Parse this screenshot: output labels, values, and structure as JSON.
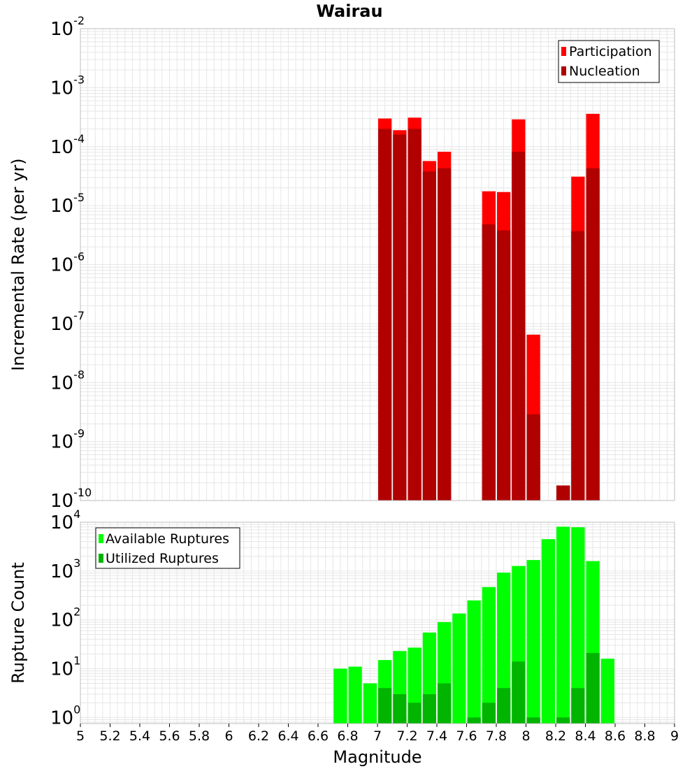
{
  "title": "Wairau",
  "colors": {
    "participation": "#ff0000",
    "nucleation": "#b00000",
    "available": "#00ff00",
    "utilized": "#00b400",
    "grid": "#e6e6e6",
    "frame": "#bdbdbd"
  },
  "chart_data": [
    {
      "type": "bar",
      "log_scale_y": true,
      "grid": true,
      "ylabel": "Incremental Rate (per yr)",
      "xlabel": "",
      "xlim": [
        5,
        9
      ],
      "ylim": [
        1e-10,
        0.01
      ],
      "bar_width": 0.1,
      "legend_position": "top-right",
      "y_ticks": [
        {
          "base": "10",
          "exp": "-10",
          "value": 1e-10
        },
        {
          "base": "10",
          "exp": "-9",
          "value": 1e-09
        },
        {
          "base": "10",
          "exp": "-8",
          "value": 1e-08
        },
        {
          "base": "10",
          "exp": "-7",
          "value": 1e-07
        },
        {
          "base": "10",
          "exp": "-6",
          "value": 1e-06
        },
        {
          "base": "10",
          "exp": "-5",
          "value": 1e-05
        },
        {
          "base": "10",
          "exp": "-4",
          "value": 0.0001
        },
        {
          "base": "10",
          "exp": "-3",
          "value": 0.001
        },
        {
          "base": "10",
          "exp": "-2",
          "value": 0.01
        }
      ],
      "series": [
        {
          "name": "Participation",
          "x": [
            7.05,
            7.15,
            7.25,
            7.35,
            7.45,
            7.75,
            7.85,
            7.95,
            8.05,
            8.25,
            8.35,
            8.45
          ],
          "values": [
            0.0003,
            0.00019,
            0.00031,
            5.7e-05,
            8.2e-05,
            1.75e-05,
            1.7e-05,
            0.00029,
            6.5e-08,
            1.8e-10,
            3.1e-05,
            0.00036
          ]
        },
        {
          "name": "Nucleation",
          "x": [
            7.05,
            7.15,
            7.25,
            7.35,
            7.45,
            7.75,
            7.85,
            7.95,
            8.05,
            8.25,
            8.35,
            8.45
          ],
          "values": [
            0.0002,
            0.00016,
            0.0002,
            3.8e-05,
            4.3e-05,
            4.8e-06,
            3.8e-06,
            8.2e-05,
            2.9e-09,
            1.8e-10,
            3.7e-06,
            4.3e-05
          ]
        }
      ]
    },
    {
      "type": "bar",
      "log_scale_y": true,
      "grid": true,
      "ylabel": "Rupture Count",
      "xlabel": "Magnitude",
      "xlim": [
        5,
        9
      ],
      "ylim": [
        0.75,
        10000
      ],
      "bar_width": 0.1,
      "legend_position": "top-left",
      "x_tick_labels": [
        "5",
        "5.2",
        "5.4",
        "5.6",
        "5.8",
        "6",
        "6.2",
        "6.4",
        "6.6",
        "6.8",
        "7",
        "7.2",
        "7.4",
        "7.6",
        "7.8",
        "8",
        "8.2",
        "8.4",
        "8.6",
        "8.8",
        "9"
      ],
      "y_ticks": [
        {
          "base": "10",
          "exp": "0",
          "value": 1
        },
        {
          "base": "10",
          "exp": "1",
          "value": 10
        },
        {
          "base": "10",
          "exp": "2",
          "value": 100
        },
        {
          "base": "10",
          "exp": "3",
          "value": 1000
        },
        {
          "base": "10",
          "exp": "4",
          "value": 10000
        }
      ],
      "series": [
        {
          "name": "Available Ruptures",
          "x": [
            6.75,
            6.85,
            6.95,
            7.05,
            7.15,
            7.25,
            7.35,
            7.45,
            7.55,
            7.65,
            7.75,
            7.85,
            7.95,
            8.05,
            8.15,
            8.25,
            8.35,
            8.45,
            8.55
          ],
          "values": [
            10,
            11,
            5,
            15,
            23,
            27,
            55,
            90,
            135,
            250,
            470,
            930,
            1270,
            1680,
            4500,
            8100,
            7900,
            1600,
            16
          ]
        },
        {
          "name": "Utilized Ruptures",
          "x": [
            7.05,
            7.15,
            7.25,
            7.35,
            7.45,
            7.65,
            7.75,
            7.85,
            7.95,
            8.05,
            8.25,
            8.35,
            8.45
          ],
          "values": [
            4,
            3,
            2,
            3,
            5,
            1,
            2,
            4,
            14,
            1,
            1,
            4,
            21
          ]
        }
      ]
    }
  ]
}
